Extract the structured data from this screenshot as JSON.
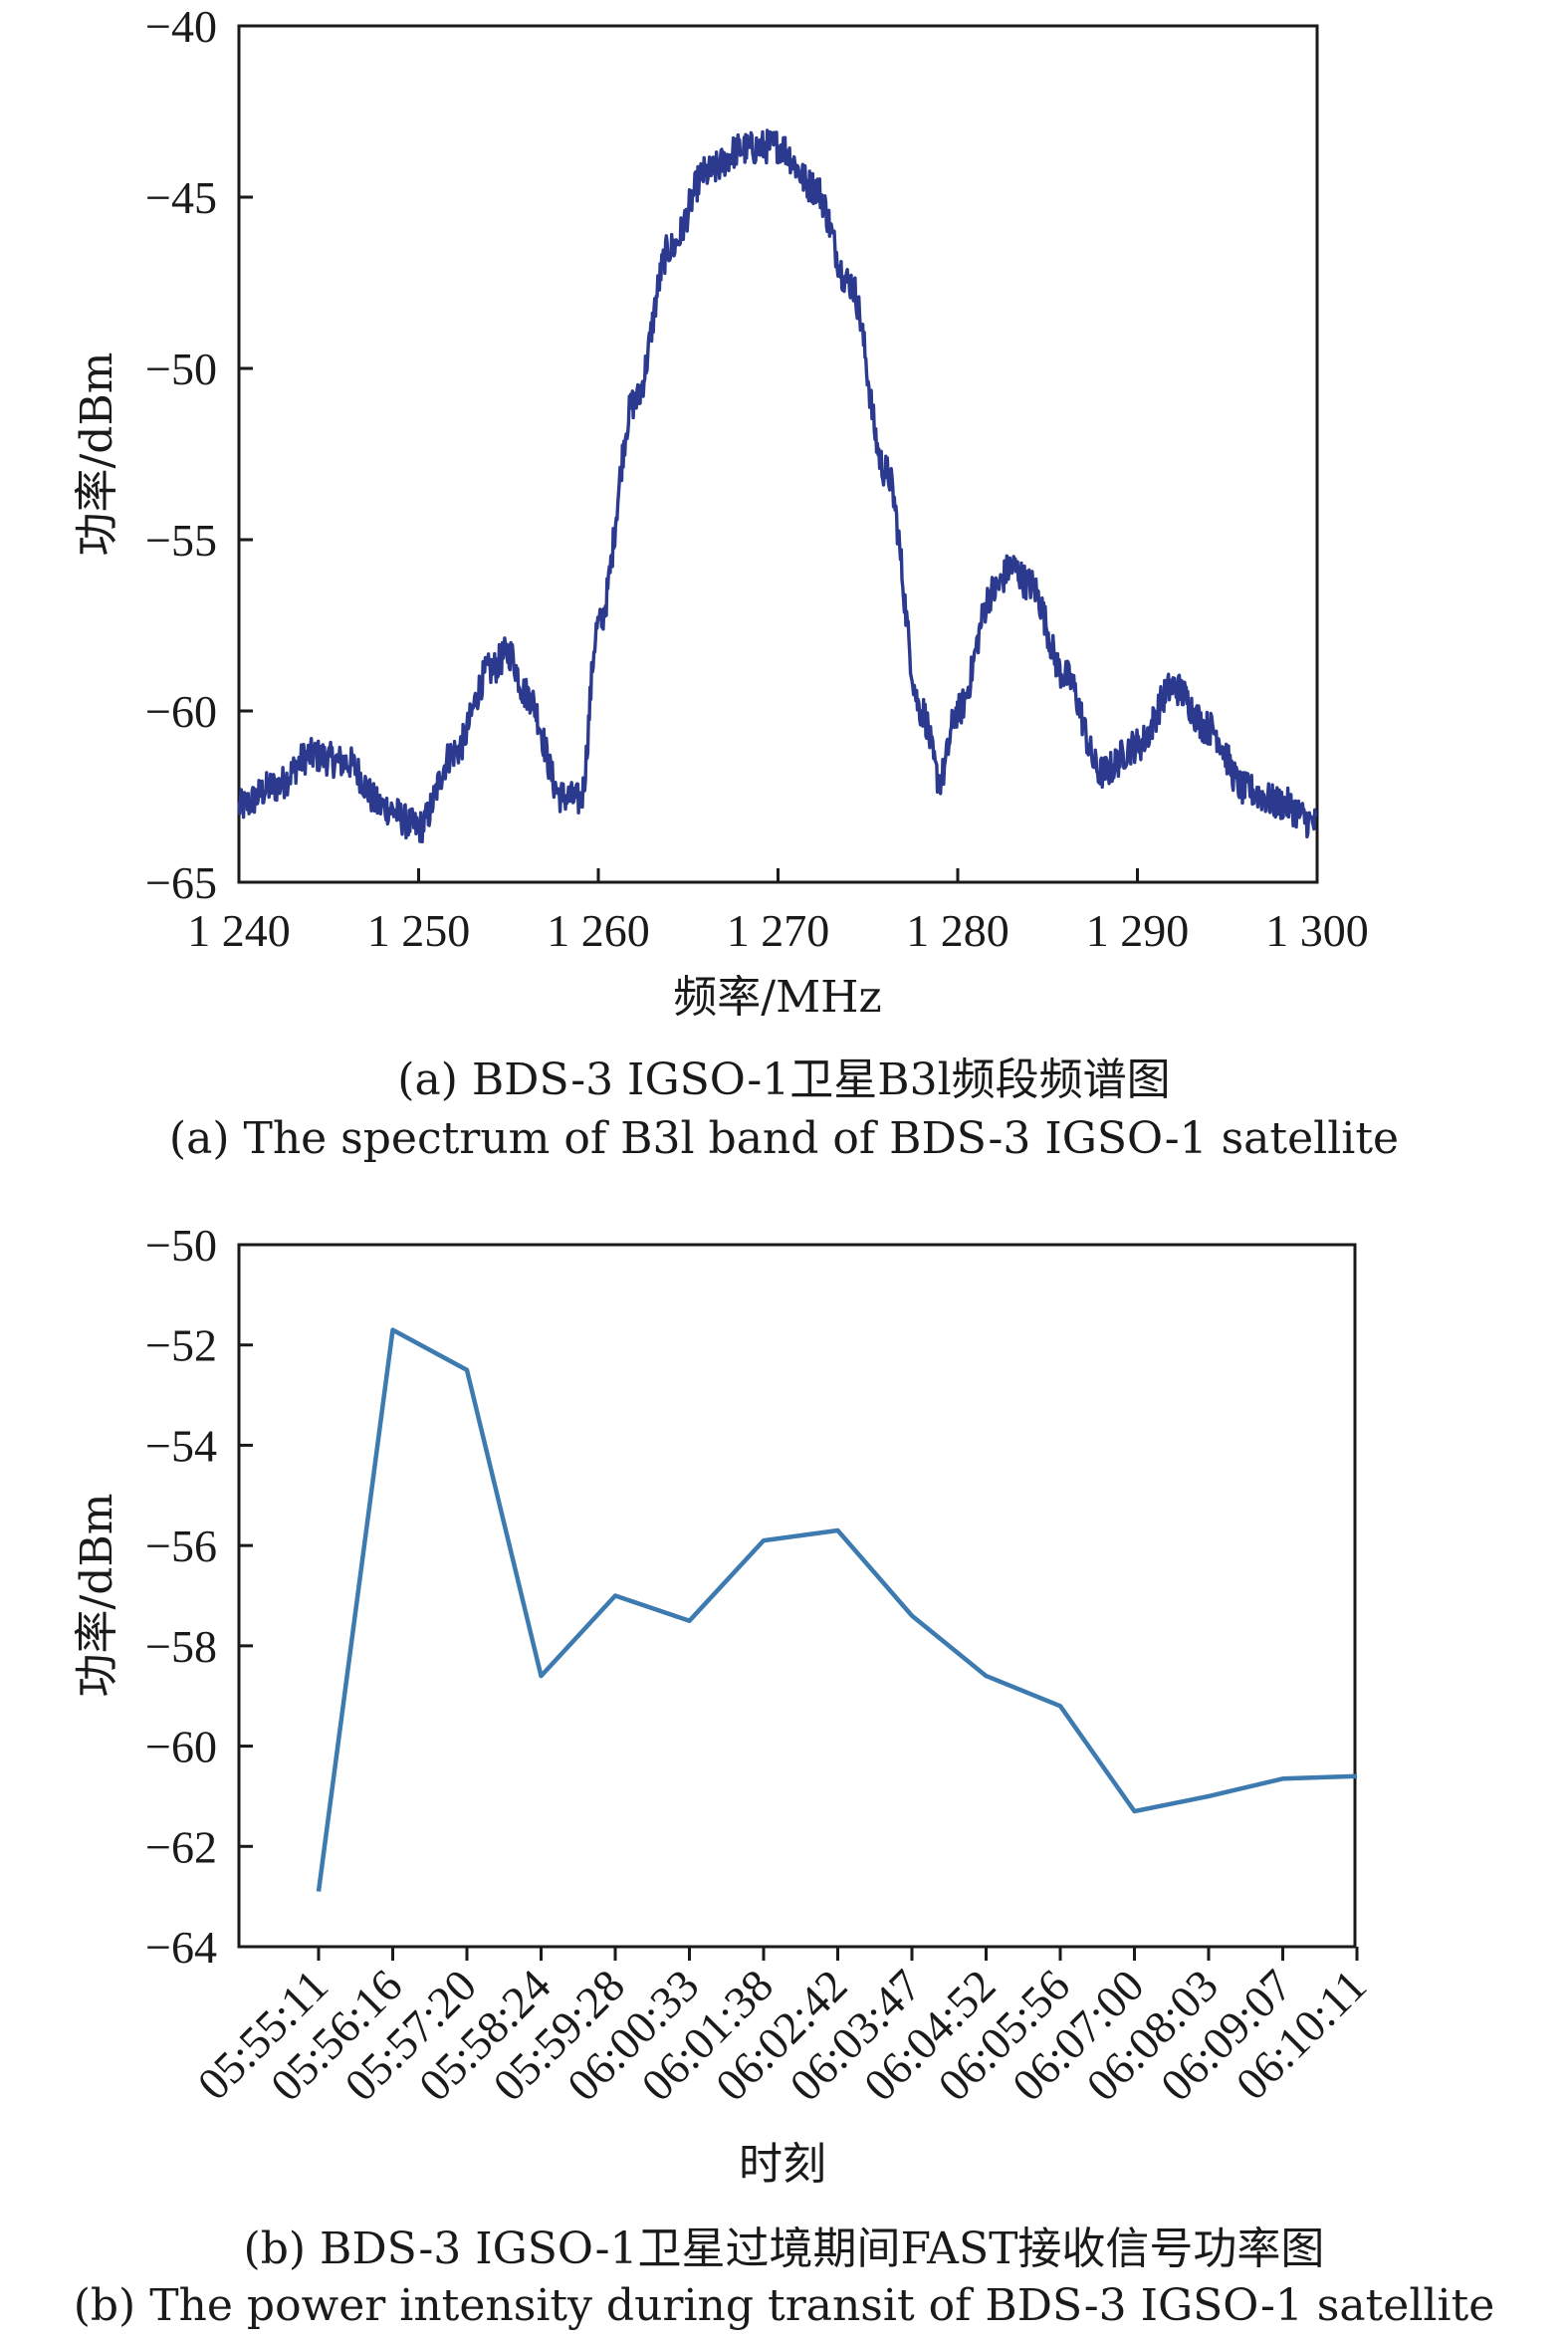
{
  "chart_data": [
    {
      "type": "line",
      "xlabel": "频率/MHz",
      "ylabel": "功率/dBm",
      "xlim": [
        1240,
        1300
      ],
      "ylim": [
        -65,
        -40
      ],
      "x_ticks": [
        "1 240",
        "1 250",
        "1 260",
        "1 270",
        "1 280",
        "1 290",
        "1 300"
      ],
      "y_ticks": [
        "−40",
        "−45",
        "−50",
        "−55",
        "−60",
        "−65"
      ],
      "color": "#2b3a8f",
      "grid": false,
      "legend": "none",
      "caption_cn": "(a) BDS-3 IGSO-1卫星B3l频段频谱图",
      "caption_en": "(a) The spectrum of B3l band of BDS-3 IGSO-1 satellite",
      "envelope": {
        "x": [
          1240,
          1242,
          1244,
          1246,
          1248,
          1250,
          1252,
          1254,
          1255,
          1256,
          1258,
          1259,
          1260,
          1262,
          1264,
          1266,
          1268,
          1270,
          1272,
          1274,
          1276,
          1278,
          1279,
          1280,
          1282,
          1283,
          1284,
          1286,
          1288,
          1290,
          1292,
          1294,
          1296,
          1298,
          1300
        ],
        "y": [
          -62.8,
          -62.2,
          -61.3,
          -61.5,
          -62.8,
          -63.4,
          -61.2,
          -58.8,
          -58.3,
          -59.5,
          -62.5,
          -62.6,
          -57.5,
          -51.0,
          -46.5,
          -44.3,
          -43.6,
          -43.5,
          -44.7,
          -47.5,
          -53.0,
          -60.0,
          -62.0,
          -60.0,
          -56.5,
          -55.8,
          -56.3,
          -59.0,
          -61.8,
          -61.0,
          -59.3,
          -60.5,
          -62.3,
          -62.7,
          -63.3
        ]
      }
    },
    {
      "type": "line",
      "xlabel": "时刻",
      "ylabel": "功率/dBm",
      "categories": [
        "05:55:11",
        "05:56:16",
        "05:57:20",
        "05:58:24",
        "05:59:28",
        "06:00:33",
        "06:01:38",
        "06:02:42",
        "06:03:47",
        "06:04:52",
        "06:05:56",
        "06:07:00",
        "06:08:03",
        "06:09:07",
        "06:10:11"
      ],
      "values": [
        -62.9,
        -51.7,
        -52.5,
        -58.6,
        -57.0,
        -57.5,
        -55.9,
        -55.7,
        -57.4,
        -58.6,
        -59.2,
        -61.3,
        -61.0,
        -60.65,
        -60.6
      ],
      "ylim": [
        -64,
        -50
      ],
      "y_ticks": [
        "−50",
        "−52",
        "−54",
        "−56",
        "−58",
        "−60",
        "−62",
        "−64"
      ],
      "color": "#3c7ab0",
      "grid": false,
      "legend": "none",
      "caption_cn": "(b) BDS-3 IGSO-1卫星过境期间FAST接收信号功率图",
      "caption_en": "(b) The power intensity during transit of BDS-3 IGSO-1 satellite"
    }
  ]
}
